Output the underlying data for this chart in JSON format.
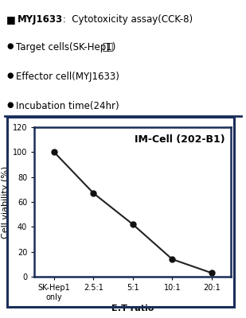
{
  "title_label": "MYJ1633",
  "title_colon": " :  Cytotoxicity assay(CCK-8)",
  "bullet1": "Target cells(SK-Hep1)  간암",
  "bullet2": "Effector cell(MYJ1633)",
  "bullet3": "Incubation time(24hr)",
  "chart_title": "IM-Cell (202-B1)",
  "xlabel": "E:T ratio",
  "ylabel": "Cell viability (%)",
  "x_labels": [
    "SK-Hep1\nonly",
    "2.5:1",
    "5:1",
    "10:1",
    "20:1"
  ],
  "x_values": [
    0,
    1,
    2,
    3,
    4
  ],
  "y_values": [
    100,
    67,
    42,
    14,
    3
  ],
  "ylim": [
    0,
    120
  ],
  "yticks": [
    0,
    20,
    40,
    60,
    80,
    100,
    120
  ],
  "line_color": "#222222",
  "marker_color": "#111111",
  "border_color": "#1a2e5a",
  "background_color": "#ffffff",
  "text_color": "#000000",
  "title_fontsize": 8.5,
  "axis_label_fontsize": 8,
  "tick_fontsize": 7,
  "chart_title_fontsize": 9,
  "bullet_fontsize": 8.5
}
